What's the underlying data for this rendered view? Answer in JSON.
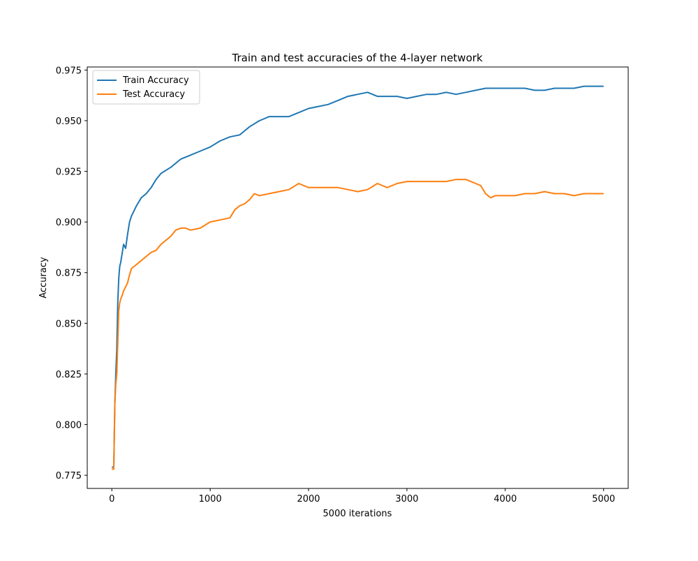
{
  "chart_data": {
    "type": "line",
    "title": "Train and test accuracies of the 4-layer network",
    "xlabel": "5000 iterations",
    "ylabel": "Accuracy",
    "xlim": [
      -250,
      5250
    ],
    "ylim": [
      0.7685,
      0.9765
    ],
    "xticks": [
      0,
      1000,
      2000,
      3000,
      4000,
      5000
    ],
    "yticks": [
      0.775,
      0.8,
      0.825,
      0.85,
      0.875,
      0.9,
      0.925,
      0.95,
      0.975
    ],
    "xtick_labels": [
      "0",
      "1000",
      "2000",
      "3000",
      "4000",
      "5000"
    ],
    "ytick_labels": [
      "0.775",
      "0.800",
      "0.825",
      "0.850",
      "0.875",
      "0.900",
      "0.925",
      "0.950",
      "0.975"
    ],
    "grid": false,
    "legend_position": "top-left",
    "series": [
      {
        "name": "Train Accuracy",
        "color": "#1f77b4",
        "x": [
          0,
          20,
          30,
          40,
          50,
          60,
          70,
          80,
          90,
          100,
          120,
          140,
          160,
          180,
          200,
          250,
          300,
          350,
          400,
          450,
          500,
          600,
          700,
          800,
          900,
          1000,
          1100,
          1200,
          1300,
          1350,
          1400,
          1500,
          1600,
          1700,
          1800,
          1900,
          2000,
          2100,
          2200,
          2300,
          2400,
          2500,
          2600,
          2700,
          2800,
          2900,
          3000,
          3100,
          3200,
          3300,
          3400,
          3500,
          3600,
          3700,
          3800,
          3900,
          4000,
          4100,
          4200,
          4300,
          4400,
          4500,
          4600,
          4700,
          4800,
          4900,
          5000
        ],
        "values": [
          0.779,
          0.779,
          0.81,
          0.825,
          0.837,
          0.86,
          0.872,
          0.878,
          0.88,
          0.883,
          0.889,
          0.887,
          0.894,
          0.9,
          0.903,
          0.908,
          0.912,
          0.914,
          0.917,
          0.921,
          0.924,
          0.927,
          0.931,
          0.933,
          0.935,
          0.937,
          0.94,
          0.942,
          0.943,
          0.945,
          0.947,
          0.95,
          0.952,
          0.952,
          0.952,
          0.954,
          0.956,
          0.957,
          0.958,
          0.96,
          0.962,
          0.963,
          0.964,
          0.962,
          0.962,
          0.962,
          0.961,
          0.962,
          0.963,
          0.963,
          0.964,
          0.963,
          0.964,
          0.965,
          0.966,
          0.966,
          0.966,
          0.966,
          0.966,
          0.965,
          0.965,
          0.966,
          0.966,
          0.966,
          0.967,
          0.967,
          0.967
        ]
      },
      {
        "name": "Test Accuracy",
        "color": "#ff7f0e",
        "x": [
          0,
          20,
          30,
          40,
          50,
          60,
          70,
          80,
          90,
          100,
          120,
          140,
          160,
          180,
          200,
          250,
          300,
          350,
          400,
          450,
          500,
          550,
          600,
          650,
          700,
          750,
          800,
          900,
          1000,
          1100,
          1200,
          1250,
          1300,
          1350,
          1400,
          1450,
          1500,
          1600,
          1700,
          1800,
          1900,
          2000,
          2100,
          2200,
          2300,
          2400,
          2500,
          2600,
          2700,
          2800,
          2900,
          3000,
          3100,
          3200,
          3300,
          3400,
          3500,
          3600,
          3650,
          3700,
          3750,
          3800,
          3850,
          3900,
          4000,
          4100,
          4200,
          4300,
          4400,
          4500,
          4600,
          4700,
          4800,
          4900,
          5000
        ],
        "values": [
          0.778,
          0.778,
          0.81,
          0.82,
          0.825,
          0.84,
          0.856,
          0.86,
          0.862,
          0.863,
          0.866,
          0.868,
          0.87,
          0.874,
          0.877,
          0.879,
          0.881,
          0.883,
          0.885,
          0.886,
          0.889,
          0.891,
          0.893,
          0.896,
          0.897,
          0.897,
          0.896,
          0.897,
          0.9,
          0.901,
          0.902,
          0.906,
          0.908,
          0.909,
          0.911,
          0.914,
          0.913,
          0.914,
          0.915,
          0.916,
          0.919,
          0.917,
          0.917,
          0.917,
          0.917,
          0.916,
          0.915,
          0.916,
          0.919,
          0.917,
          0.919,
          0.92,
          0.92,
          0.92,
          0.92,
          0.92,
          0.921,
          0.921,
          0.92,
          0.919,
          0.918,
          0.914,
          0.912,
          0.913,
          0.913,
          0.913,
          0.914,
          0.914,
          0.915,
          0.914,
          0.914,
          0.913,
          0.914,
          0.914,
          0.914
        ]
      }
    ]
  }
}
